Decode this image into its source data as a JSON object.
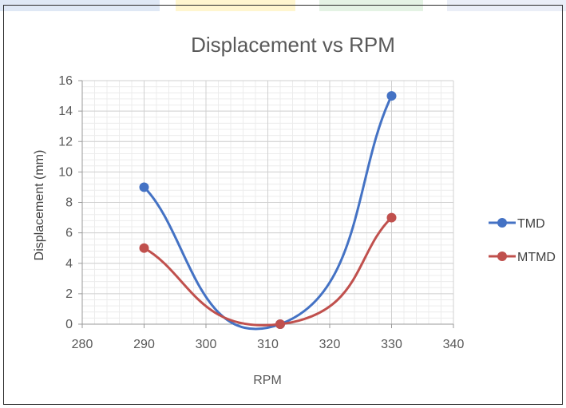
{
  "chart_data": {
    "type": "line",
    "title": "Displacement vs RPM",
    "xlabel": "RPM",
    "ylabel": "Displacement (mm)",
    "xlim": [
      280,
      340
    ],
    "ylim": [
      0,
      16
    ],
    "x_ticks": [
      280,
      290,
      300,
      310,
      320,
      330,
      340
    ],
    "y_ticks": [
      0,
      2,
      4,
      6,
      8,
      10,
      12,
      14,
      16
    ],
    "x_tick_labels": [
      "280",
      "290",
      "300",
      "310",
      "320",
      "330",
      "340"
    ],
    "y_tick_labels": [
      "0",
      "2",
      "4",
      "6",
      "8",
      "10",
      "12",
      "14",
      "16"
    ],
    "grid": true,
    "minor_grid": true,
    "smooth": true,
    "legend_position": "right",
    "series": [
      {
        "name": "TMD",
        "color": "#4472C4",
        "x": [
          290,
          312,
          330
        ],
        "y": [
          9,
          0,
          15
        ]
      },
      {
        "name": "MTMD",
        "color": "#C0504D",
        "x": [
          290,
          312,
          330
        ],
        "y": [
          5,
          0,
          7
        ]
      }
    ]
  },
  "watermark_colors": [
    "#dfe8f5",
    "#fff6cf",
    "#e4f3e4",
    "#eaeef7"
  ]
}
